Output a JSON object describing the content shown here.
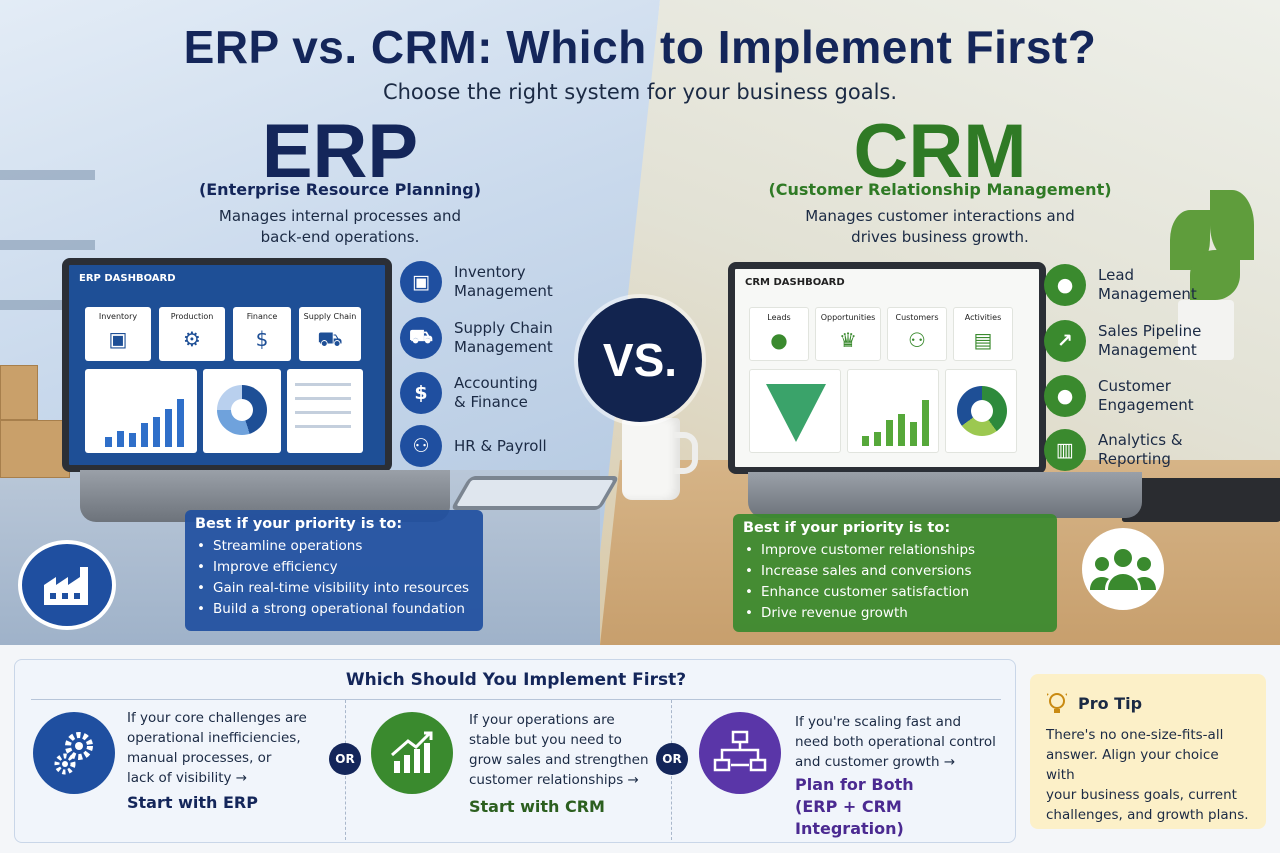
{
  "title": "ERP vs. CRM: Which to Implement First?",
  "subtitle": "Choose the right system for your business goals.",
  "vs_label": "VS.",
  "erp": {
    "name": "ERP",
    "full_name": "(Enterprise Resource Planning)",
    "description_line1": "Manages internal processes and",
    "description_line2": "back-end operations.",
    "dashboard": {
      "title": "ERP DASHBOARD",
      "tiles": [
        "Inventory",
        "Production",
        "Finance",
        "Supply Chain"
      ]
    },
    "features": [
      {
        "line1": "Inventory",
        "line2": "Management",
        "icon": "box-icon"
      },
      {
        "line1": "Supply Chain",
        "line2": "Management",
        "icon": "truck-icon"
      },
      {
        "line1": "Accounting",
        "line2": "& Finance",
        "icon": "dollar-icon"
      },
      {
        "line1": "HR & Payroll",
        "line2": "",
        "icon": "people-icon"
      }
    ],
    "priority_title": "Best if your priority is to:",
    "priorities": [
      "Streamline operations",
      "Improve efficiency",
      "Gain real-time visibility into resources",
      "Build a strong operational foundation"
    ],
    "color": "#1f4fa0"
  },
  "crm": {
    "name": "CRM",
    "full_name": "(Customer Relationship Management)",
    "description_line1": "Manages customer interactions and",
    "description_line2": "drives business growth.",
    "dashboard": {
      "title": "CRM DASHBOARD",
      "tiles": [
        "Leads",
        "Opportunities",
        "Customers",
        "Activities"
      ]
    },
    "features": [
      {
        "line1": "Lead",
        "line2": "Management",
        "icon": "person-icon"
      },
      {
        "line1": "Sales Pipeline",
        "line2": "Management",
        "icon": "trend-icon"
      },
      {
        "line1": "Customer",
        "line2": "Engagement",
        "icon": "person-icon"
      },
      {
        "line1": "Analytics &",
        "line2": "Reporting",
        "icon": "chart-icon"
      }
    ],
    "priority_title": "Best if your priority is to:",
    "priorities": [
      "Improve customer relationships",
      "Increase sales and conversions",
      "Enhance customer satisfaction",
      "Drive revenue growth"
    ],
    "color": "#3a8a2e"
  },
  "decision": {
    "title": "Which Should You Implement First?",
    "or_label": "OR",
    "options": [
      {
        "lines": [
          "If your core challenges are",
          "operational inefficiencies,",
          "manual processes, or",
          "lack of visibility →"
        ],
        "cta": "Start with ERP",
        "color": "#14265a"
      },
      {
        "lines": [
          "If your operations are",
          "stable but you need to",
          "grow sales and strengthen",
          "customer relationships →"
        ],
        "cta": "Start with CRM",
        "color": "#2c5f1f"
      },
      {
        "lines": [
          "If you're scaling fast and",
          "need both operational control",
          "and customer growth →"
        ],
        "cta_line1": "Plan for Both",
        "cta_line2": "(ERP + CRM Integration)",
        "color": "#4b2a91"
      }
    ]
  },
  "pro_tip": {
    "title": "Pro Tip",
    "lines": [
      "There's no one-size-fits-all",
      "answer. Align your choice with",
      "your business goals, current",
      "challenges, and growth plans."
    ]
  }
}
